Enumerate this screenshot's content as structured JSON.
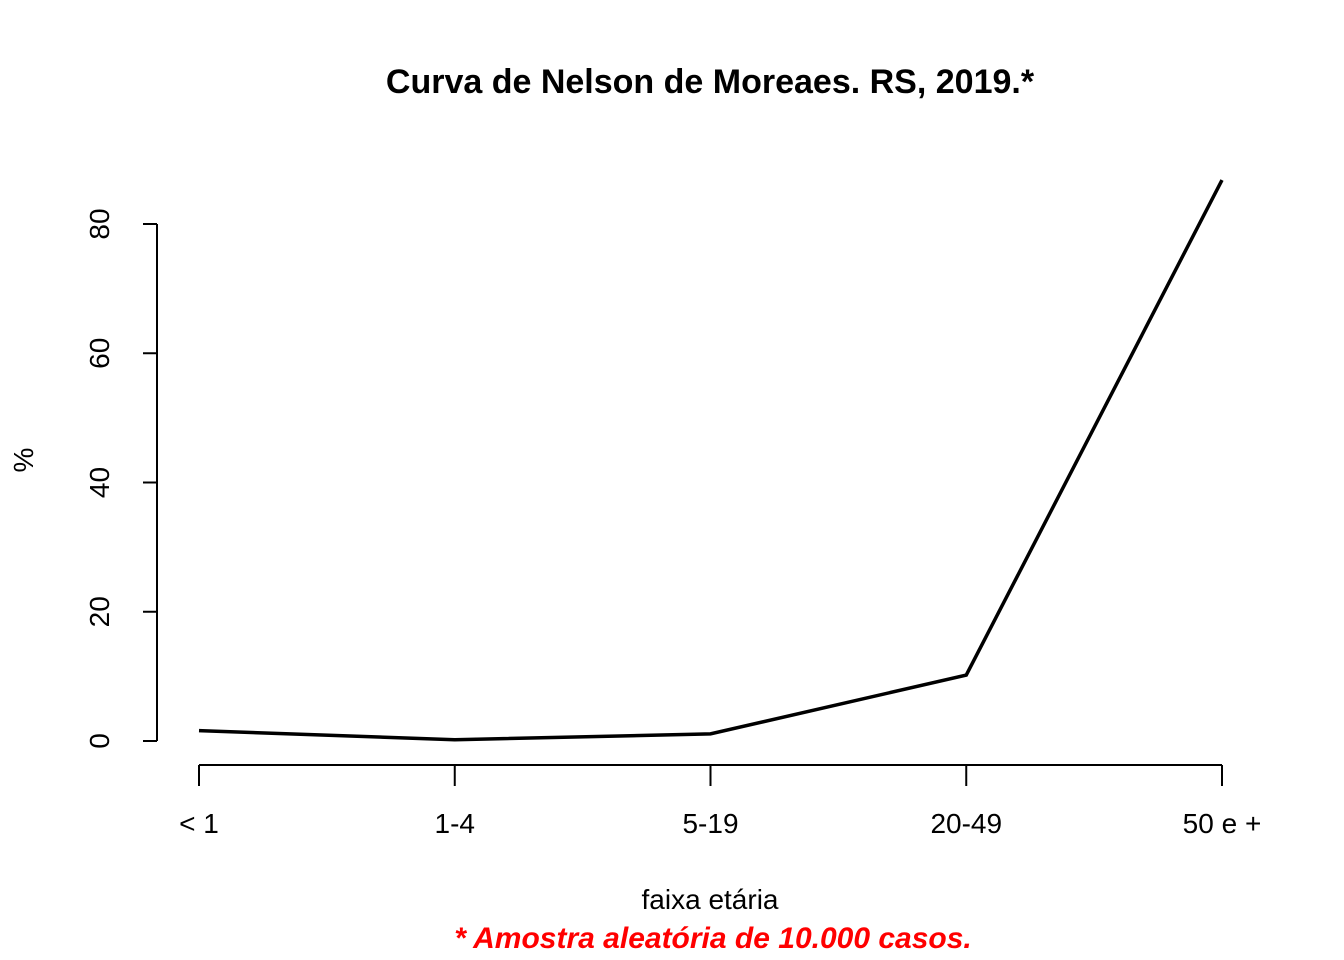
{
  "chart_data": {
    "type": "line",
    "title": "Curva de Nelson de Moreaes. RS, 2019.*",
    "xlabel": "faixa etária",
    "ylabel": "%",
    "categories": [
      "< 1",
      "1-4",
      "5-19",
      "20-49",
      "50 e +"
    ],
    "series": [
      {
        "values": [
          1.6,
          0.2,
          1.1,
          10.2,
          86.8
        ]
      }
    ],
    "ylim": [
      0,
      80
    ],
    "yticks": [
      "0",
      "20",
      "40",
      "60",
      "80"
    ],
    "grid": false,
    "legend": "none"
  },
  "footnote": "* Amostra aleatória de 10.000 casos."
}
